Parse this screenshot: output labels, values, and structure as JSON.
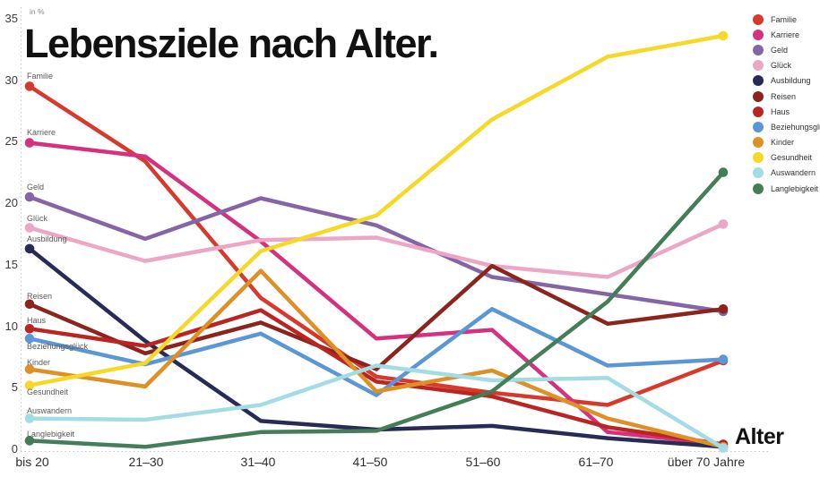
{
  "page": {
    "title": "Lebensziele nach Alter.",
    "unit_label": "in %",
    "x_axis_title": "Alter"
  },
  "chart_data": {
    "type": "line",
    "title": "Lebensziele nach Alter.",
    "xlabel": "Alter",
    "ylabel": "in %",
    "ylim": [
      0,
      35
    ],
    "y_ticks": [
      0,
      5,
      10,
      15,
      20,
      25,
      30,
      35
    ],
    "grid": false,
    "legend_position": "top-right",
    "categories": [
      "bis 20",
      "21–30",
      "31–40",
      "41–50",
      "51–60",
      "61–70",
      "über 70 Jahre"
    ],
    "series": [
      {
        "name": "Familie",
        "color": "#d63a2c",
        "values": [
          29.5,
          23.4,
          12.3,
          5.9,
          4.6,
          3.6,
          7.2
        ]
      },
      {
        "name": "Karriere",
        "color": "#d4317e",
        "values": [
          24.9,
          23.8,
          16.9,
          9.0,
          9.7,
          1.4,
          0.4
        ]
      },
      {
        "name": "Geld",
        "color": "#8465a5",
        "values": [
          20.5,
          17.1,
          20.4,
          18.2,
          14.0,
          12.6,
          11.2
        ]
      },
      {
        "name": "Glück",
        "color": "#eca6c6",
        "values": [
          18.0,
          15.3,
          17.0,
          17.2,
          14.9,
          14.0,
          18.3
        ]
      },
      {
        "name": "Ausbildung",
        "color": "#272b55",
        "values": [
          16.3,
          8.8,
          2.3,
          1.6,
          1.9,
          0.9,
          0.2
        ]
      },
      {
        "name": "Reisen",
        "color": "#8a241d",
        "values": [
          11.8,
          7.8,
          10.3,
          6.5,
          14.9,
          10.2,
          11.4
        ]
      },
      {
        "name": "Haus",
        "color": "#bb2521",
        "values": [
          9.8,
          8.4,
          11.3,
          5.5,
          4.3,
          1.8,
          0.4
        ]
      },
      {
        "name": "Beziehungsglück",
        "color": "#5b97d4",
        "values": [
          9.0,
          6.9,
          9.4,
          4.4,
          11.4,
          6.8,
          7.3
        ]
      },
      {
        "name": "Kinder",
        "color": "#dc9025",
        "values": [
          6.5,
          5.1,
          14.5,
          4.7,
          6.4,
          2.5,
          0.2
        ]
      },
      {
        "name": "Gesundheit",
        "color": "#f6d928",
        "values": [
          5.2,
          7.0,
          16.1,
          19.0,
          26.8,
          31.9,
          33.6
        ]
      },
      {
        "name": "Auswandern",
        "color": "#a3dce2",
        "values": [
          2.5,
          2.4,
          3.6,
          6.8,
          5.6,
          5.8,
          0.1
        ]
      },
      {
        "name": "Langlebigkeit",
        "color": "#447e58",
        "values": [
          0.7,
          0.2,
          1.4,
          1.5,
          4.7,
          12.0,
          22.5
        ]
      }
    ]
  }
}
